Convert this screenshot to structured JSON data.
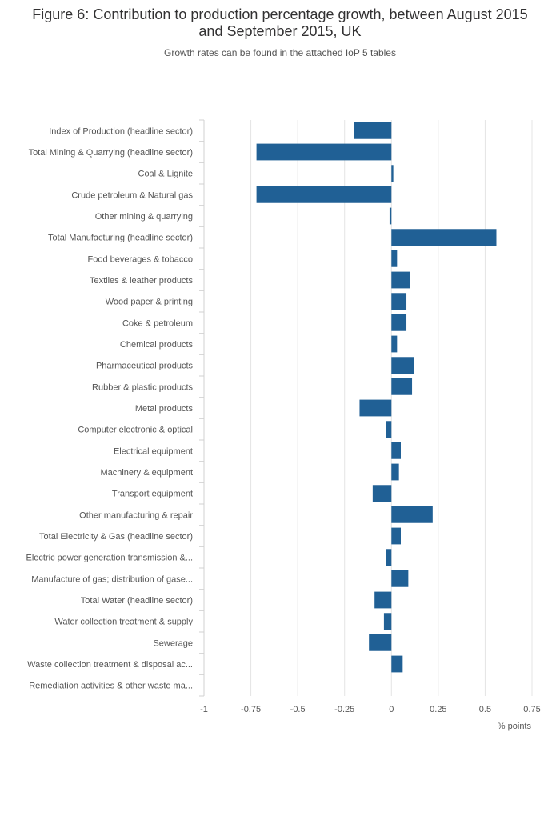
{
  "header": {
    "title": "Figure 6: Contribution to production percentage growth, between August 2015 and September 2015, UK",
    "subtitle": "Growth rates can be found in the attached IoP 5 tables"
  },
  "chart_data": {
    "type": "bar",
    "orientation": "horizontal",
    "title": "Figure 6: Contribution to production percentage growth, between August 2015 and September 2015, UK",
    "subtitle": "Growth rates can be found in the attached IoP 5 tables",
    "xlabel": "% points",
    "ylabel": "",
    "xlim": [
      -1,
      0.75
    ],
    "xticks": [
      -1,
      -0.75,
      -0.5,
      -0.25,
      0,
      0.25,
      0.5,
      0.75
    ],
    "xtick_labels": [
      "-1",
      "-0.75",
      "-0.5",
      "-0.25",
      "0",
      "0.25",
      "0.5",
      "0.75"
    ],
    "grid": "vertical",
    "bar_color": "#206095",
    "categories": [
      "Index of Production (headline sector)",
      "Total Mining & Quarrying (headline sector)",
      "Coal & Lignite",
      "Crude petroleum & Natural gas",
      "Other mining & quarrying",
      "Total Manufacturing (headline sector)",
      "Food beverages & tobacco",
      "Textiles & leather products",
      "Wood paper & printing",
      "Coke & petroleum",
      "Chemical products",
      "Pharmaceutical products",
      "Rubber & plastic products",
      "Metal products",
      "Computer electronic & optical",
      "Electrical equipment",
      "Machinery & equipment",
      "Transport equipment",
      "Other manufacturing & repair",
      "Total Electricity & Gas (headline sector)",
      "Electric power generation transmission &...",
      "Manufacture of gas; distribution of gase...",
      "Total Water (headline sector)",
      "Water collection treatment & supply",
      "Sewerage",
      "Waste collection treatment & disposal ac...",
      "Remediation activities & other waste ma..."
    ],
    "values": [
      -0.2,
      -0.72,
      0.01,
      -0.72,
      -0.01,
      0.56,
      0.03,
      0.1,
      0.08,
      0.08,
      0.03,
      0.12,
      0.11,
      -0.17,
      -0.03,
      0.05,
      0.04,
      -0.1,
      0.22,
      0.05,
      -0.03,
      0.09,
      -0.09,
      -0.04,
      -0.12,
      0.06,
      0.0
    ]
  }
}
